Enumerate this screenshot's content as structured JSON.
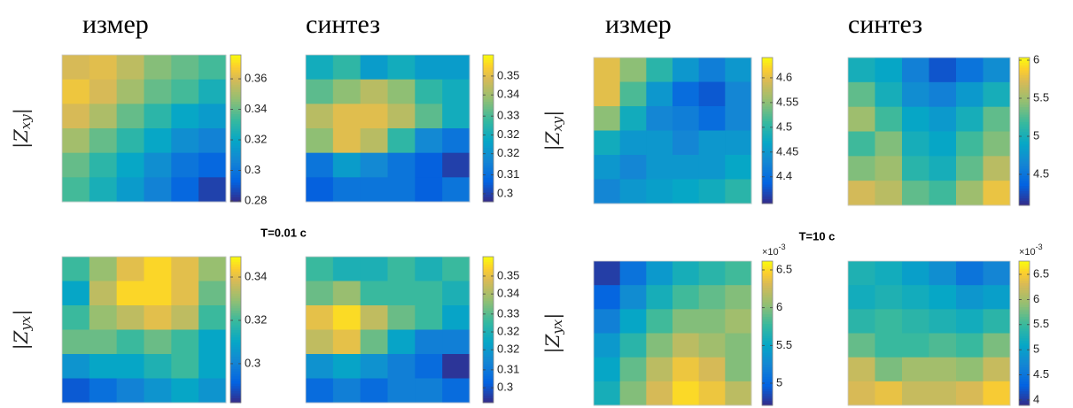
{
  "chart_data": [
    {
      "type": "heatmap",
      "title": "измер",
      "ylabel_parts": [
        "|Z",
        "xy",
        "|"
      ],
      "colormap": "parula",
      "clim": [
        0.2794,
        0.3757
      ],
      "cticks": [
        0.28,
        0.3,
        0.32,
        0.34,
        0.36
      ],
      "z": [
        [
          0.36,
          0.362,
          0.355,
          0.345,
          0.34,
          0.335
        ],
        [
          0.365,
          0.36,
          0.35,
          0.34,
          0.335,
          0.325
        ],
        [
          0.36,
          0.352,
          0.34,
          0.33,
          0.32,
          0.315
        ],
        [
          0.35,
          0.34,
          0.33,
          0.32,
          0.31,
          0.305
        ],
        [
          0.34,
          0.33,
          0.32,
          0.31,
          0.3,
          0.295
        ],
        [
          0.335,
          0.325,
          0.315,
          0.305,
          0.295,
          0.285
        ]
      ]
    },
    {
      "type": "heatmap",
      "title": "синтез",
      "colormap": "parula",
      "clim": [
        0.2966,
        0.359
      ],
      "cticks": [
        {
          "value": 0.3,
          "label": "0.3"
        },
        {
          "value": 0.308,
          "label": "0.31"
        },
        {
          "value": 0.317,
          "label": "0.32"
        },
        {
          "value": 0.325,
          "label": "0.32"
        },
        {
          "value": 0.333,
          "label": "0.33"
        },
        {
          "value": 0.342,
          "label": "0.34"
        },
        {
          "value": 0.35,
          "label": "0.35"
        }
      ],
      "z": [
        [
          0.325,
          0.33,
          0.32,
          0.325,
          0.32,
          0.32
        ],
        [
          0.335,
          0.34,
          0.345,
          0.34,
          0.33,
          0.325
        ],
        [
          0.345,
          0.35,
          0.35,
          0.345,
          0.335,
          0.325
        ],
        [
          0.34,
          0.35,
          0.345,
          0.33,
          0.315,
          0.31
        ],
        [
          0.31,
          0.32,
          0.315,
          0.31,
          0.305,
          0.3
        ],
        [
          0.305,
          0.31,
          0.31,
          0.31,
          0.305,
          0.31
        ]
      ]
    },
    {
      "type": "heatmap",
      "ylabel_parts": [
        "|Z",
        "yx",
        "|"
      ],
      "colormap": "parula",
      "clim": [
        0.282,
        0.3494
      ],
      "cticks": [
        0.3,
        0.32,
        0.34
      ],
      "z": [
        [
          0.32,
          0.33,
          0.34,
          0.345,
          0.34,
          0.33
        ],
        [
          0.31,
          0.335,
          0.345,
          0.345,
          0.34,
          0.325
        ],
        [
          0.32,
          0.33,
          0.335,
          0.34,
          0.335,
          0.32
        ],
        [
          0.325,
          0.325,
          0.32,
          0.325,
          0.32,
          0.31
        ],
        [
          0.305,
          0.31,
          0.31,
          0.315,
          0.32,
          0.31
        ],
        [
          0.29,
          0.295,
          0.3,
          0.305,
          0.31,
          0.305
        ]
      ]
    },
    {
      "type": "heatmap",
      "colormap": "parula",
      "clim": [
        0.2933,
        0.3587
      ],
      "cticks": [
        {
          "value": 0.3,
          "label": "0.3"
        },
        {
          "value": 0.308,
          "label": "0.31"
        },
        {
          "value": 0.317,
          "label": "0.32"
        },
        {
          "value": 0.325,
          "label": "0.32"
        },
        {
          "value": 0.333,
          "label": "0.33"
        },
        {
          "value": 0.342,
          "label": "0.34"
        },
        {
          "value": 0.35,
          "label": "0.35"
        }
      ],
      "z": [
        [
          0.33,
          0.325,
          0.325,
          0.33,
          0.325,
          0.33
        ],
        [
          0.335,
          0.34,
          0.33,
          0.33,
          0.33,
          0.325
        ],
        [
          0.35,
          0.355,
          0.345,
          0.335,
          0.33,
          0.32
        ],
        [
          0.345,
          0.35,
          0.335,
          0.32,
          0.31,
          0.31
        ],
        [
          0.315,
          0.32,
          0.315,
          0.31,
          0.305,
          0.295
        ],
        [
          0.305,
          0.31,
          0.305,
          0.31,
          0.31,
          0.305
        ]
      ]
    },
    {
      "type": "heatmap",
      "title": "измер",
      "ylabel_parts": [
        "|Z",
        "xy",
        "|"
      ],
      "colormap": "parula",
      "clim": [
        4.346,
        4.641
      ],
      "cticks": [
        4.4,
        4.45,
        4.5,
        4.55,
        4.6
      ],
      "z": [
        [
          4.6,
          4.55,
          4.5,
          4.45,
          4.42,
          4.45
        ],
        [
          4.6,
          4.52,
          4.45,
          4.4,
          4.38,
          4.43
        ],
        [
          4.55,
          4.48,
          4.43,
          4.42,
          4.4,
          4.43
        ],
        [
          4.48,
          4.45,
          4.45,
          4.43,
          4.45,
          4.45
        ],
        [
          4.45,
          4.43,
          4.45,
          4.45,
          4.45,
          4.47
        ],
        [
          4.43,
          4.45,
          4.46,
          4.47,
          4.48,
          4.5
        ]
      ]
    },
    {
      "type": "heatmap",
      "title": "синтез",
      "colormap": "parula",
      "clim": [
        4.093,
        6.035
      ],
      "cticks": [
        4.5,
        5,
        5.5,
        6
      ],
      "z": [
        [
          5.0,
          4.9,
          4.6,
          4.3,
          4.5,
          4.7
        ],
        [
          5.3,
          5.0,
          4.7,
          4.6,
          4.8,
          5.0
        ],
        [
          5.5,
          5.2,
          4.9,
          4.8,
          5.0,
          5.3
        ],
        [
          5.2,
          5.4,
          5.0,
          4.9,
          5.2,
          5.4
        ],
        [
          5.4,
          5.5,
          5.1,
          5.0,
          5.3,
          5.6
        ],
        [
          5.7,
          5.6,
          5.3,
          5.2,
          5.5,
          5.8
        ]
      ]
    },
    {
      "type": "heatmap",
      "ylabel_parts": [
        "|Z",
        "yx",
        "|"
      ],
      "colormap": "parula",
      "multiplier": {
        "base": "×10",
        "power": "-3"
      },
      "clim": [
        0.004707,
        0.006617
      ],
      "cticks": [
        {
          "value": 0.005,
          "label": "5"
        },
        {
          "value": 0.0055,
          "label": "5.5"
        },
        {
          "value": 0.006,
          "label": "6"
        },
        {
          "value": 0.0065,
          "label": "6.5"
        }
      ],
      "z": [
        [
          0.0048,
          0.0051,
          0.0054,
          0.0056,
          0.0057,
          0.0058
        ],
        [
          0.005,
          0.0053,
          0.0056,
          0.0058,
          0.0059,
          0.006
        ],
        [
          0.0052,
          0.0055,
          0.0058,
          0.006,
          0.006,
          0.0061
        ],
        [
          0.0054,
          0.0057,
          0.006,
          0.0062,
          0.0061,
          0.006
        ],
        [
          0.0055,
          0.0059,
          0.0062,
          0.0064,
          0.0063,
          0.006
        ],
        [
          0.0056,
          0.006,
          0.0063,
          0.0065,
          0.0064,
          0.0062
        ]
      ]
    },
    {
      "type": "heatmap",
      "colormap": "parula",
      "multiplier": {
        "base": "×10",
        "power": "-3"
      },
      "clim": [
        0.003894,
        0.006764
      ],
      "cticks": [
        {
          "value": 0.004,
          "label": "4"
        },
        {
          "value": 0.0045,
          "label": "4.5"
        },
        {
          "value": 0.005,
          "label": "5"
        },
        {
          "value": 0.0055,
          "label": "5.5"
        },
        {
          "value": 0.006,
          "label": "6"
        },
        {
          "value": 0.0065,
          "label": "6.5"
        }
      ],
      "z": [
        [
          0.0053,
          0.0052,
          0.005,
          0.0048,
          0.0045,
          0.0047
        ],
        [
          0.0052,
          0.0053,
          0.0052,
          0.0051,
          0.0049,
          0.005
        ],
        [
          0.0054,
          0.0055,
          0.0054,
          0.0053,
          0.0052,
          0.0054
        ],
        [
          0.0057,
          0.0055,
          0.0055,
          0.0056,
          0.0055,
          0.0058
        ],
        [
          0.0062,
          0.0058,
          0.006,
          0.006,
          0.0059,
          0.0062
        ],
        [
          0.0063,
          0.0064,
          0.0062,
          0.0062,
          0.0063,
          0.0065
        ]
      ]
    }
  ],
  "annotations": [
    "T=0.01 c",
    "T=10 c"
  ]
}
